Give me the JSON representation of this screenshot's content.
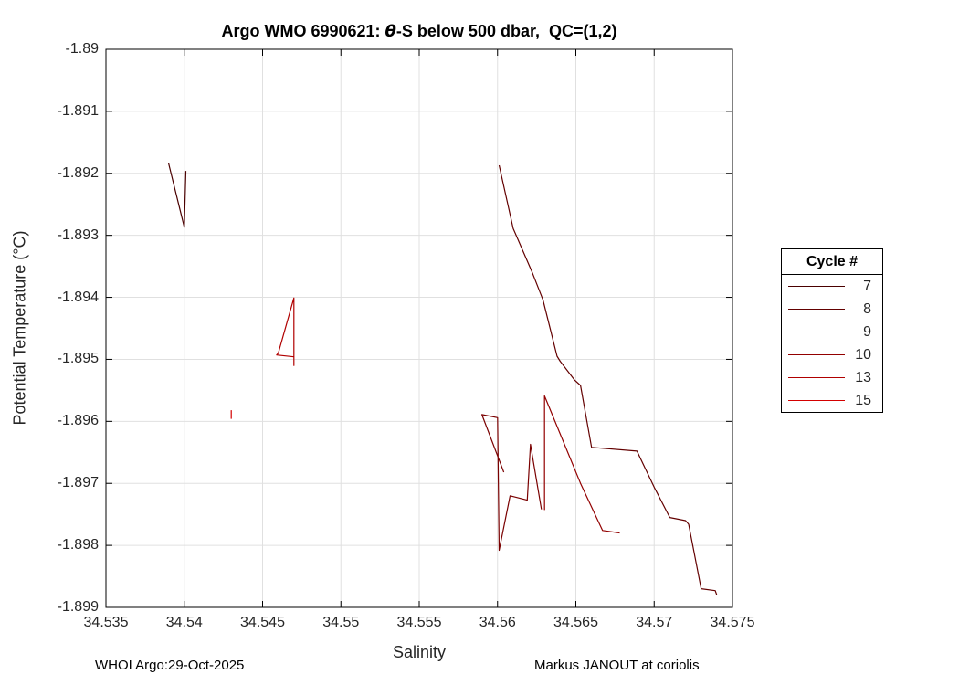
{
  "title": {
    "prefix": "Argo WMO 6990621: ",
    "theta": "θ",
    "suffix": "-S below 500 dbar,  QC=(1,2)"
  },
  "axes": {
    "xlabel": "Salinity",
    "ylabel": "Potential Temperature (°C)"
  },
  "legend": {
    "title": "Cycle #"
  },
  "footer": {
    "left": "WHOI Argo:29-Oct-2025",
    "right": "Markus JANOUT at coriolis"
  },
  "chart_data": {
    "type": "line",
    "title": "Argo WMO 6990621: θ-S below 500 dbar,  QC=(1,2)",
    "xlabel": "Salinity",
    "ylabel": "Potential Temperature (°C)",
    "xlim": [
      34.535,
      34.575
    ],
    "ylim": [
      -1.899,
      -1.89
    ],
    "grid": true,
    "legend_position": "right-outside",
    "legend_title": "Cycle #",
    "x_ticks": [
      34.535,
      34.54,
      34.545,
      34.55,
      34.555,
      34.56,
      34.565,
      34.57,
      34.575
    ],
    "x_tick_labels": [
      "34.535",
      "34.54",
      "34.545",
      "34.55",
      "34.555",
      "34.56",
      "34.565",
      "34.57",
      "34.575"
    ],
    "y_ticks": [
      -1.89,
      -1.891,
      -1.892,
      -1.893,
      -1.894,
      -1.895,
      -1.896,
      -1.897,
      -1.898,
      -1.899
    ],
    "y_tick_labels": [
      "-1.89",
      "-1.891",
      "-1.892",
      "-1.893",
      "-1.894",
      "-1.895",
      "-1.896",
      "-1.897",
      "-1.898",
      "-1.899"
    ],
    "series": [
      {
        "name": "7",
        "color": "#4a0000",
        "points": [
          [
            34.539,
            -1.89184
          ],
          [
            34.54,
            -1.89287
          ],
          [
            34.5401,
            -1.89196
          ]
        ]
      },
      {
        "name": "8",
        "color": "#630000",
        "points": [
          [
            34.5601,
            -1.89187
          ],
          [
            34.561,
            -1.89289
          ],
          [
            34.5622,
            -1.89359
          ],
          [
            34.5629,
            -1.89404
          ],
          [
            34.5638,
            -1.89495
          ],
          [
            34.564,
            -1.89503
          ],
          [
            34.5649,
            -1.89533
          ],
          [
            34.5653,
            -1.89542
          ],
          [
            34.566,
            -1.89642
          ],
          [
            34.5689,
            -1.89648
          ],
          [
            34.57,
            -1.89706
          ],
          [
            34.571,
            -1.89755
          ],
          [
            34.572,
            -1.8976
          ],
          [
            34.5722,
            -1.89766
          ],
          [
            34.573,
            -1.8987
          ],
          [
            34.5739,
            -1.89873
          ],
          [
            34.574,
            -1.8988
          ]
        ]
      },
      {
        "name": "9",
        "color": "#7a0000",
        "points": [
          [
            34.5604,
            -1.89682
          ],
          [
            34.559,
            -1.89589
          ],
          [
            34.56,
            -1.89594
          ],
          [
            34.5601,
            -1.89808
          ],
          [
            34.5608,
            -1.8972
          ],
          [
            34.5619,
            -1.89727
          ],
          [
            34.5621,
            -1.89637
          ],
          [
            34.5628,
            -1.89742
          ]
        ]
      },
      {
        "name": "10",
        "color": "#920000",
        "points": [
          [
            34.563,
            -1.89743
          ],
          [
            34.563,
            -1.89559
          ],
          [
            34.5653,
            -1.897
          ],
          [
            34.5667,
            -1.89776
          ],
          [
            34.5678,
            -1.8978
          ]
        ]
      },
      {
        "name": "13",
        "color": "#b00000",
        "points": [
          [
            34.546,
            -1.8949
          ],
          [
            34.5459,
            -1.89493
          ],
          [
            34.547,
            -1.89496
          ],
          [
            34.547,
            -1.8951
          ],
          [
            34.547,
            -1.89401
          ],
          [
            34.546,
            -1.8949
          ]
        ]
      },
      {
        "name": "15",
        "color": "#d40000",
        "points": [
          [
            34.543,
            -1.89582
          ],
          [
            34.543,
            -1.89596
          ]
        ]
      }
    ]
  }
}
